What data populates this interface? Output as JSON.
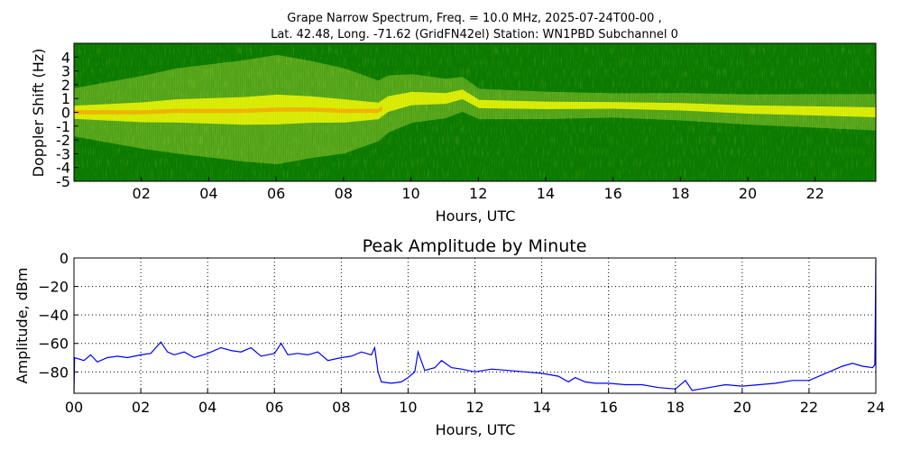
{
  "chart_data": [
    {
      "type": "heatmap",
      "title_line1": "Grape Narrow Spectrum, Freq. = 10.0 MHz, 2025-07-24T00-00 ,",
      "title_line2": "Lat.  42.48, Long. -71.62 (GridFN42el) Station: WN1PBD Subchannel 0",
      "xlabel": "Hours, UTC",
      "ylabel": "Doppler Shift (Hz)",
      "xlim": [
        0,
        23.8
      ],
      "ylim": [
        -5,
        5
      ],
      "x_ticks": [
        "02",
        "04",
        "06",
        "08",
        "10",
        "12",
        "14",
        "16",
        "18",
        "20",
        "22"
      ],
      "x_tick_values": [
        2,
        4,
        6,
        8,
        10,
        12,
        14,
        16,
        18,
        20,
        22
      ],
      "y_ticks": [
        "4",
        "3",
        "2",
        "1",
        "0",
        "-1",
        "-2",
        "-3",
        "-4",
        "-5"
      ],
      "y_tick_values": [
        4,
        3,
        2,
        1,
        0,
        -1,
        -2,
        -3,
        -4,
        -5
      ],
      "colormap": [
        "#006400",
        "#2e8b00",
        "#9acd32",
        "#ffff00",
        "#ff8c00",
        "#ff0000"
      ],
      "trace_center_hz": [
        [
          0,
          0
        ],
        [
          1,
          0
        ],
        [
          2,
          0
        ],
        [
          3,
          0.1
        ],
        [
          4,
          0.1
        ],
        [
          5,
          0.1
        ],
        [
          6,
          0.2
        ],
        [
          7,
          0.2
        ],
        [
          8,
          0.1
        ],
        [
          9,
          0.1
        ],
        [
          9.3,
          0.6
        ],
        [
          10,
          1.0
        ],
        [
          11,
          1.0
        ],
        [
          11.5,
          1.3
        ],
        [
          12,
          0.6
        ],
        [
          14,
          0.5
        ],
        [
          16,
          0.5
        ],
        [
          18,
          0.4
        ],
        [
          20,
          0.2
        ],
        [
          22,
          0.1
        ],
        [
          23.8,
          0.0
        ]
      ],
      "trace_spread_hz": [
        [
          0,
          0.8
        ],
        [
          3,
          1.4
        ],
        [
          6,
          1.8
        ],
        [
          8,
          1.4
        ],
        [
          9,
          1.0
        ],
        [
          10,
          0.8
        ],
        [
          12,
          0.5
        ],
        [
          16,
          0.4
        ],
        [
          20,
          0.5
        ],
        [
          23.8,
          0.6
        ]
      ]
    },
    {
      "type": "line",
      "title": "Peak Amplitude by Minute",
      "xlabel": "Hours, UTC",
      "ylabel": "Amplitude, dBm",
      "xlim": [
        0,
        24
      ],
      "ylim": [
        -95,
        0
      ],
      "grid": true,
      "x_ticks": [
        "00",
        "02",
        "04",
        "06",
        "08",
        "10",
        "12",
        "14",
        "16",
        "18",
        "20",
        "22",
        "24"
      ],
      "x_tick_values": [
        0,
        2,
        4,
        6,
        8,
        10,
        12,
        14,
        16,
        18,
        20,
        22,
        24
      ],
      "y_ticks": [
        "0",
        "−20",
        "−40",
        "−60",
        "−80"
      ],
      "y_tick_values": [
        0,
        -20,
        -40,
        -60,
        -80
      ],
      "line_color": "#0000ff",
      "series": [
        {
          "values": [
            [
              0.0,
              -95
            ],
            [
              0.02,
              -70
            ],
            [
              0.3,
              -72
            ],
            [
              0.5,
              -68
            ],
            [
              0.7,
              -73
            ],
            [
              1.0,
              -70
            ],
            [
              1.3,
              -69
            ],
            [
              1.6,
              -70
            ],
            [
              2.0,
              -68
            ],
            [
              2.3,
              -67
            ],
            [
              2.6,
              -59
            ],
            [
              2.8,
              -66
            ],
            [
              3.0,
              -68
            ],
            [
              3.3,
              -66
            ],
            [
              3.6,
              -70
            ],
            [
              4.0,
              -67
            ],
            [
              4.4,
              -63
            ],
            [
              4.7,
              -65
            ],
            [
              5.0,
              -66
            ],
            [
              5.3,
              -63
            ],
            [
              5.6,
              -69
            ],
            [
              6.0,
              -67
            ],
            [
              6.2,
              -60
            ],
            [
              6.4,
              -68
            ],
            [
              6.7,
              -67
            ],
            [
              7.0,
              -68
            ],
            [
              7.3,
              -66
            ],
            [
              7.6,
              -72
            ],
            [
              8.0,
              -70
            ],
            [
              8.3,
              -69
            ],
            [
              8.6,
              -66
            ],
            [
              8.9,
              -68
            ],
            [
              9.0,
              -63
            ],
            [
              9.1,
              -80
            ],
            [
              9.2,
              -87
            ],
            [
              9.5,
              -88
            ],
            [
              9.8,
              -87
            ],
            [
              10.0,
              -84
            ],
            [
              10.2,
              -80
            ],
            [
              10.3,
              -66
            ],
            [
              10.5,
              -79
            ],
            [
              10.8,
              -77
            ],
            [
              11.0,
              -72
            ],
            [
              11.3,
              -77
            ],
            [
              11.6,
              -78
            ],
            [
              12.0,
              -80
            ],
            [
              12.5,
              -78
            ],
            [
              13.0,
              -79
            ],
            [
              13.5,
              -80
            ],
            [
              14.0,
              -81
            ],
            [
              14.5,
              -83
            ],
            [
              14.8,
              -87
            ],
            [
              15.0,
              -84
            ],
            [
              15.3,
              -87
            ],
            [
              15.6,
              -88
            ],
            [
              16.0,
              -88
            ],
            [
              16.5,
              -89
            ],
            [
              17.0,
              -89
            ],
            [
              17.5,
              -91
            ],
            [
              18.0,
              -92
            ],
            [
              18.3,
              -86
            ],
            [
              18.5,
              -93
            ],
            [
              19.0,
              -91
            ],
            [
              19.5,
              -89
            ],
            [
              20.0,
              -90
            ],
            [
              20.5,
              -89
            ],
            [
              21.0,
              -88
            ],
            [
              21.5,
              -86
            ],
            [
              22.0,
              -86
            ],
            [
              22.3,
              -83
            ],
            [
              22.6,
              -80
            ],
            [
              23.0,
              -76
            ],
            [
              23.3,
              -74
            ],
            [
              23.6,
              -76
            ],
            [
              23.9,
              -77
            ],
            [
              23.97,
              -75
            ],
            [
              24.0,
              -1
            ]
          ]
        }
      ]
    }
  ]
}
